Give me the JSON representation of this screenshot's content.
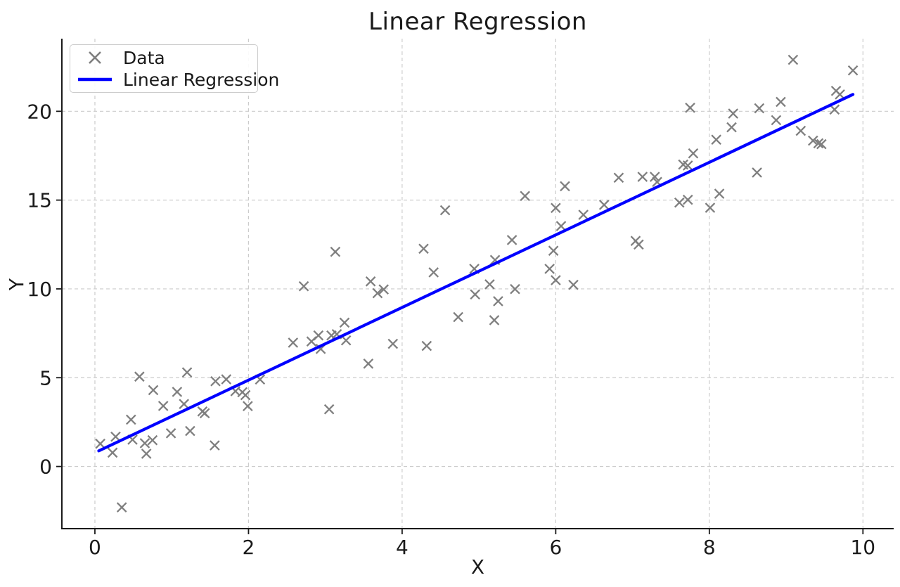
{
  "chart_data": {
    "type": "scatter",
    "title": "Linear Regression",
    "xlabel": "X",
    "ylabel": "Y",
    "xlim": [
      -0.43,
      10.4
    ],
    "ylim": [
      -3.5,
      24.09
    ],
    "xticks": [
      0,
      2,
      4,
      6,
      8,
      10
    ],
    "yticks": [
      0,
      5,
      10,
      15,
      20
    ],
    "grid": "dashed",
    "legend": {
      "position": "upper-left",
      "entries": [
        {
          "label": "Data",
          "marker": "x",
          "color": "#7f7f7f"
        },
        {
          "label": "Linear Regression",
          "marker": "line",
          "color": "#0000ff"
        }
      ]
    },
    "series": [
      {
        "name": "Data",
        "type": "scatter",
        "marker": "x",
        "color": "#7f7f7f",
        "points": [
          [
            0.07,
            1.28
          ],
          [
            0.23,
            0.78
          ],
          [
            0.27,
            1.68
          ],
          [
            0.35,
            -2.3
          ],
          [
            0.47,
            2.64
          ],
          [
            0.49,
            1.51
          ],
          [
            0.58,
            5.06
          ],
          [
            0.65,
            1.31
          ],
          [
            0.67,
            0.72
          ],
          [
            0.75,
            1.48
          ],
          [
            0.76,
            4.3
          ],
          [
            0.89,
            3.41
          ],
          [
            0.99,
            1.87
          ],
          [
            1.07,
            4.2
          ],
          [
            1.16,
            3.52
          ],
          [
            1.2,
            5.3
          ],
          [
            1.24,
            2.0
          ],
          [
            1.4,
            3.1
          ],
          [
            1.43,
            3.0
          ],
          [
            1.56,
            1.19
          ],
          [
            1.57,
            4.8
          ],
          [
            1.71,
            4.91
          ],
          [
            1.83,
            4.24
          ],
          [
            1.92,
            4.18
          ],
          [
            1.96,
            4.02
          ],
          [
            1.99,
            3.4
          ],
          [
            2.15,
            4.9
          ],
          [
            2.58,
            6.97
          ],
          [
            2.72,
            10.15
          ],
          [
            2.82,
            7.04
          ],
          [
            2.91,
            7.38
          ],
          [
            2.94,
            6.62
          ],
          [
            3.05,
            3.22
          ],
          [
            3.08,
            7.38
          ],
          [
            3.15,
            7.45
          ],
          [
            3.13,
            12.09
          ],
          [
            3.25,
            8.1
          ],
          [
            3.27,
            7.1
          ],
          [
            3.56,
            5.79
          ],
          [
            3.59,
            10.42
          ],
          [
            3.68,
            9.76
          ],
          [
            3.76,
            9.97
          ],
          [
            3.88,
            6.91
          ],
          [
            4.28,
            12.26
          ],
          [
            4.32,
            6.79
          ],
          [
            4.41,
            10.93
          ],
          [
            4.56,
            14.43
          ],
          [
            4.73,
            8.41
          ],
          [
            4.94,
            11.13
          ],
          [
            4.95,
            9.69
          ],
          [
            5.14,
            10.26
          ],
          [
            5.2,
            8.24
          ],
          [
            5.21,
            11.63
          ],
          [
            5.25,
            9.31
          ],
          [
            5.43,
            12.75
          ],
          [
            5.47,
            9.99
          ],
          [
            5.6,
            15.23
          ],
          [
            5.92,
            11.13
          ],
          [
            5.97,
            12.15
          ],
          [
            6.0,
            14.56
          ],
          [
            6.0,
            10.49
          ],
          [
            6.07,
            13.54
          ],
          [
            6.12,
            15.78
          ],
          [
            6.23,
            10.23
          ],
          [
            6.36,
            14.17
          ],
          [
            6.63,
            14.73
          ],
          [
            6.82,
            16.26
          ],
          [
            7.04,
            12.7
          ],
          [
            7.08,
            12.5
          ],
          [
            7.13,
            16.31
          ],
          [
            7.29,
            16.31
          ],
          [
            7.32,
            16.02
          ],
          [
            7.61,
            14.86
          ],
          [
            7.66,
            17.0
          ],
          [
            7.72,
            16.95
          ],
          [
            7.72,
            15.02
          ],
          [
            7.75,
            20.2
          ],
          [
            7.79,
            17.63
          ],
          [
            8.01,
            14.57
          ],
          [
            8.09,
            18.4
          ],
          [
            8.13,
            15.36
          ],
          [
            8.29,
            19.1
          ],
          [
            8.31,
            19.87
          ],
          [
            8.62,
            16.55
          ],
          [
            8.65,
            20.17
          ],
          [
            8.87,
            19.5
          ],
          [
            8.93,
            20.53
          ],
          [
            9.09,
            22.9
          ],
          [
            9.19,
            18.9
          ],
          [
            9.35,
            18.35
          ],
          [
            9.42,
            18.2
          ],
          [
            9.46,
            18.15
          ],
          [
            9.63,
            20.1
          ],
          [
            9.65,
            21.15
          ],
          [
            9.7,
            20.95
          ],
          [
            9.87,
            22.3
          ]
        ]
      },
      {
        "name": "Linear Regression",
        "type": "line",
        "color": "#0000ff",
        "points": [
          [
            0.05,
            0.88
          ],
          [
            9.87,
            20.95
          ]
        ]
      }
    ]
  },
  "colors": {
    "background": "#ffffff",
    "text": "#1a1a1a",
    "grid": "#cccccc",
    "spine": "#1a1a1a",
    "marker": "#7f7f7f",
    "line": "#0000ff"
  }
}
